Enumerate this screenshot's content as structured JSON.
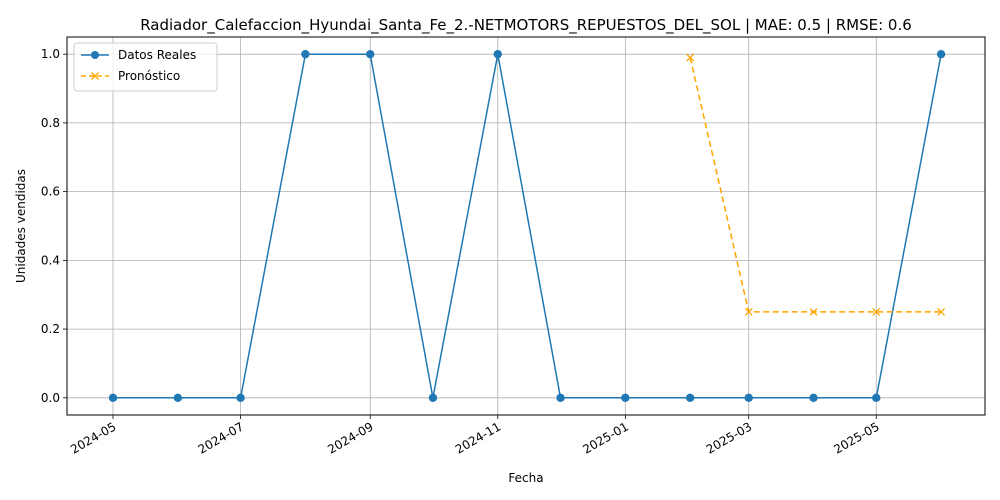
{
  "chart_data": {
    "type": "line",
    "title": "Radiador_Calefaccion_Hyundai_Santa_Fe_2.-NETMOTORS_REPUESTOS_DEL_SOL | MAE: 0.5 | RMSE: 0.6",
    "xlabel": "Fecha",
    "ylabel": "Unidades vendidas",
    "xlim": [
      "2024-04-09",
      "2025-06-22"
    ],
    "ylim": [
      -0.05,
      1.05
    ],
    "x_ticks": [
      "2024-05",
      "2024-07",
      "2024-09",
      "2024-11",
      "2025-01",
      "2025-03",
      "2025-05"
    ],
    "y_ticks": [
      "0.0",
      "0.2",
      "0.4",
      "0.6",
      "0.8",
      "1.0"
    ],
    "grid": true,
    "legend_position": "top-left",
    "series": [
      {
        "name": "Datos Reales",
        "color": "#1f77b4",
        "marker": "circle",
        "linestyle": "solid",
        "x": [
          "2024-05-01",
          "2024-06-01",
          "2024-07-01",
          "2024-08-01",
          "2024-09-01",
          "2024-10-01",
          "2024-11-01",
          "2024-12-01",
          "2025-01-01",
          "2025-02-01",
          "2025-03-01",
          "2025-04-01",
          "2025-05-01",
          "2025-06-01"
        ],
        "values": [
          0,
          0,
          0,
          1,
          1,
          0,
          1,
          0,
          0,
          0,
          0,
          0,
          0,
          1
        ]
      },
      {
        "name": "Pronóstico",
        "color": "#ffa500",
        "marker": "x",
        "linestyle": "dashed",
        "x": [
          "2025-02-01",
          "2025-03-01",
          "2025-04-01",
          "2025-05-01",
          "2025-06-01"
        ],
        "values": [
          0.99,
          0.25,
          0.25,
          0.25,
          0.25
        ]
      }
    ]
  }
}
